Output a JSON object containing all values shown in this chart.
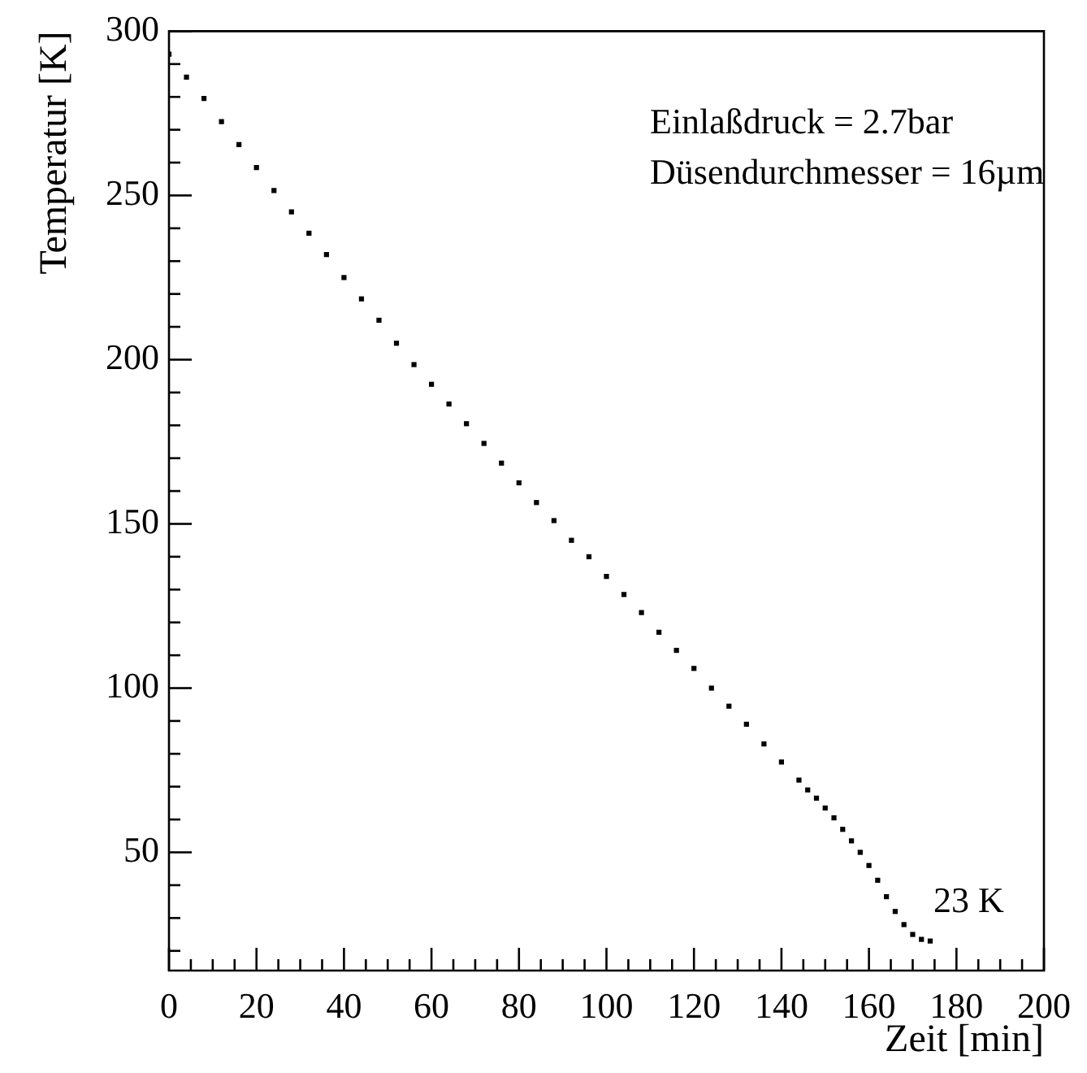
{
  "chart_data": {
    "type": "scatter",
    "xlabel": "Zeit [min]",
    "ylabel": "Temperatur [K]",
    "marker": "square",
    "grid": false,
    "legend": false,
    "annotations": [
      "Einlaßdruck = 2.7bar",
      "Düsendurchmesser = 16µm",
      {
        "text": "23 K",
        "x": 174,
        "y": 23
      }
    ],
    "xlim": [
      0,
      200
    ],
    "ylim": [
      14,
      300
    ],
    "xticks": [
      0,
      {
        "value": 5,
        "label": null
      },
      {
        "value": 10,
        "label": null
      },
      {
        "value": 15,
        "label": null
      },
      20,
      {
        "value": 25,
        "label": null
      },
      {
        "value": 30,
        "label": null
      },
      {
        "value": 35,
        "label": null
      },
      40,
      {
        "value": 45,
        "label": null
      },
      {
        "value": 50,
        "label": null
      },
      {
        "value": 55,
        "label": null
      },
      60,
      {
        "value": 65,
        "label": null
      },
      {
        "value": 70,
        "label": null
      },
      {
        "value": 75,
        "label": null
      },
      80,
      {
        "value": 85,
        "label": null
      },
      {
        "value": 90,
        "label": null
      },
      {
        "value": 95,
        "label": null
      },
      100,
      {
        "value": 105,
        "label": null
      },
      {
        "value": 110,
        "label": null
      },
      {
        "value": 115,
        "label": null
      },
      120,
      {
        "value": 125,
        "label": null
      },
      {
        "value": 130,
        "label": null
      },
      {
        "value": 135,
        "label": null
      },
      140,
      {
        "value": 145,
        "label": null
      },
      {
        "value": 150,
        "label": null
      },
      {
        "value": 155,
        "label": null
      },
      160,
      {
        "value": 165,
        "label": null
      },
      {
        "value": 170,
        "label": null
      },
      {
        "value": 175,
        "label": null
      },
      180,
      {
        "value": 185,
        "label": null
      },
      {
        "value": 190,
        "label": null
      },
      {
        "value": 195,
        "label": null
      },
      200
    ],
    "yticks": [
      {
        "value": 20,
        "label": null
      },
      {
        "value": 30,
        "label": null
      },
      {
        "value": 40,
        "label": null
      },
      50,
      {
        "value": 60,
        "label": null
      },
      {
        "value": 70,
        "label": null
      },
      {
        "value": 80,
        "label": null
      },
      {
        "value": 90,
        "label": null
      },
      100,
      {
        "value": 110,
        "label": null
      },
      {
        "value": 120,
        "label": null
      },
      {
        "value": 130,
        "label": null
      },
      {
        "value": 140,
        "label": null
      },
      150,
      {
        "value": 160,
        "label": null
      },
      {
        "value": 170,
        "label": null
      },
      {
        "value": 180,
        "label": null
      },
      {
        "value": 190,
        "label": null
      },
      200,
      {
        "value": 210,
        "label": null
      },
      {
        "value": 220,
        "label": null
      },
      {
        "value": 230,
        "label": null
      },
      {
        "value": 240,
        "label": null
      },
      250,
      {
        "value": 260,
        "label": null
      },
      {
        "value": 270,
        "label": null
      },
      {
        "value": 280,
        "label": null
      },
      {
        "value": 290,
        "label": null
      },
      300
    ],
    "series": [
      {
        "color": "#000000",
        "x": [
          0,
          4,
          8,
          12,
          16,
          20,
          24,
          28,
          32,
          36,
          40,
          44,
          48,
          52,
          56,
          60,
          64,
          68,
          72,
          76,
          80,
          84,
          88,
          92,
          96,
          100,
          104,
          108,
          112,
          116,
          120,
          124,
          128,
          132,
          136,
          140,
          144,
          146,
          148,
          150,
          152,
          154,
          156,
          158,
          160,
          162,
          164,
          166,
          168,
          170,
          172,
          174
        ],
        "values": [
          293,
          286,
          279.5,
          272.5,
          265.5,
          258.5,
          251.5,
          245,
          238.5,
          232,
          225,
          218.5,
          212,
          205,
          198.5,
          192.5,
          186.5,
          180.5,
          174.5,
          168.5,
          162.5,
          156.5,
          151,
          145,
          140,
          134,
          128.5,
          123,
          117,
          111.5,
          106,
          100,
          94.5,
          89,
          83,
          77.5,
          72,
          69,
          66.5,
          63.5,
          60.5,
          57,
          53.5,
          50,
          46,
          41.5,
          36.5,
          32,
          28,
          25,
          23.5,
          23
        ]
      }
    ]
  }
}
